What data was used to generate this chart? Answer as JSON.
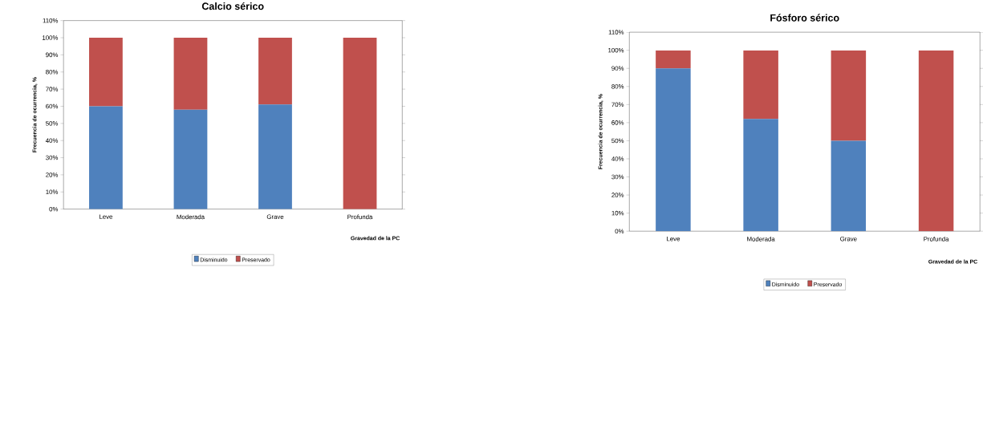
{
  "chart_data": [
    {
      "type": "bar",
      "stacked": true,
      "title": "Calcio sérico",
      "xlabel": "Gravedad  de la PC",
      "ylabel": "Frecuencia de ocurrencia, %",
      "categories": [
        "Leve",
        "Moderada",
        "Grave",
        "Profunda"
      ],
      "series": [
        {
          "name": "Disminuido",
          "color": "#4f81bd",
          "values": [
            60,
            58,
            61,
            0
          ]
        },
        {
          "name": "Preservado",
          "color": "#c0504d",
          "values": [
            40,
            42,
            39,
            100
          ]
        }
      ],
      "ylim": [
        0,
        110
      ],
      "yticks": [
        {
          "value": 0,
          "label": "0%"
        },
        {
          "value": 10,
          "label": "10%"
        },
        {
          "value": 20,
          "label": "20%"
        },
        {
          "value": 30,
          "label": "30%"
        },
        {
          "value": 40,
          "label": "40%"
        },
        {
          "value": 50,
          "label": "50%"
        },
        {
          "value": 60,
          "label": "60%"
        },
        {
          "value": 70,
          "label": "70%"
        },
        {
          "value": 80,
          "label": "80%"
        },
        {
          "value": 90,
          "label": "90%"
        },
        {
          "value": 100,
          "label": "100%"
        },
        {
          "value": 110,
          "label": "110%"
        }
      ],
      "grid": false,
      "legend": "bottom"
    },
    {
      "type": "bar",
      "stacked": true,
      "title": "Fósforo sérico",
      "xlabel": "Gravedad  de la PC",
      "ylabel": "Frecuencia  de ocurrencia, %",
      "categories": [
        "Leve",
        "Moderada",
        "Grave",
        "Profunda"
      ],
      "series": [
        {
          "name": "Disminuido",
          "color": "#4f81bd",
          "values": [
            90,
            62,
            50,
            0
          ]
        },
        {
          "name": "Preservado",
          "color": "#c0504d",
          "values": [
            10,
            38,
            50,
            100
          ]
        }
      ],
      "ylim": [
        0,
        110
      ],
      "yticks": [
        {
          "value": 0,
          "label": "0%"
        },
        {
          "value": 10,
          "label": "10%"
        },
        {
          "value": 20,
          "label": "20%"
        },
        {
          "value": 30,
          "label": "30%"
        },
        {
          "value": 40,
          "label": "40%"
        },
        {
          "value": 50,
          "label": "50%"
        },
        {
          "value": 60,
          "label": "60%"
        },
        {
          "value": 70,
          "label": "70%"
        },
        {
          "value": 80,
          "label": "80%"
        },
        {
          "value": 90,
          "label": "90%"
        },
        {
          "value": 100,
          "label": "100%"
        },
        {
          "value": 110,
          "label": "110%"
        }
      ],
      "grid": false,
      "legend": "bottom"
    }
  ]
}
